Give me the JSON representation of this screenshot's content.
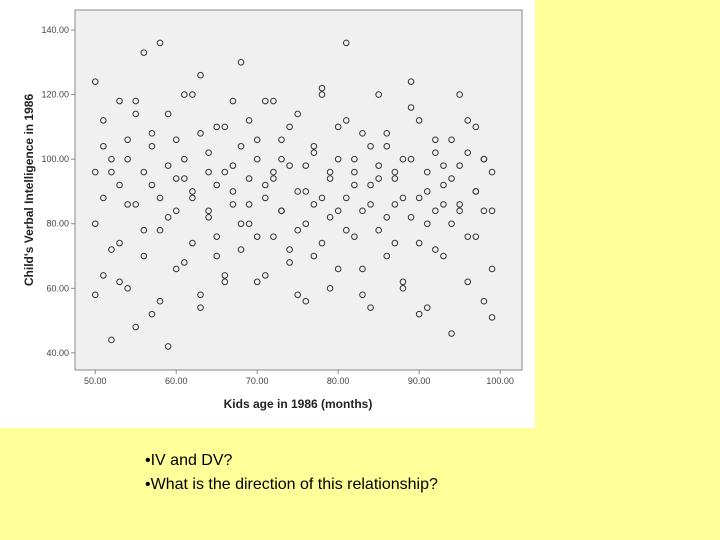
{
  "chart_data": {
    "type": "scatter",
    "xlabel": "Kids age in 1986 (months)",
    "ylabel": "Child's Verbal Intelligence in 1986",
    "xlim": [
      47.5,
      102.7
    ],
    "ylim": [
      34.7,
      146.2
    ],
    "xticks": [
      {
        "value": 50,
        "label": "50.00"
      },
      {
        "value": 60,
        "label": "60.00"
      },
      {
        "value": 70,
        "label": "70.00"
      },
      {
        "value": 80,
        "label": "80.00"
      },
      {
        "value": 90,
        "label": "90.00"
      },
      {
        "value": 100,
        "label": "100.00"
      }
    ],
    "yticks": [
      {
        "value": 40,
        "label": "40.00"
      },
      {
        "value": 60,
        "label": "60.00"
      },
      {
        "value": 80,
        "label": "80.00"
      },
      {
        "value": 100,
        "label": "100.00"
      },
      {
        "value": 120,
        "label": "120.00"
      },
      {
        "value": 140,
        "label": "140.00"
      }
    ],
    "color": "#333333",
    "x": [
      50,
      50,
      51,
      51,
      52,
      52,
      53,
      53,
      54,
      54,
      55,
      55,
      56,
      56,
      57,
      57,
      58,
      58,
      59,
      59,
      60,
      60,
      61,
      61,
      62,
      62,
      63,
      63,
      64,
      64,
      65,
      65,
      66,
      66,
      67,
      67,
      68,
      68,
      69,
      69,
      70,
      70,
      71,
      71,
      72,
      72,
      73,
      73,
      74,
      74,
      75,
      75,
      76,
      76,
      77,
      77,
      78,
      78,
      79,
      79,
      80,
      80,
      81,
      81,
      82,
      82,
      83,
      83,
      84,
      84,
      85,
      85,
      86,
      86,
      87,
      87,
      88,
      88,
      89,
      89,
      90,
      90,
      91,
      91,
      92,
      92,
      93,
      93,
      94,
      94,
      95,
      95,
      96,
      96,
      97,
      97,
      98,
      98,
      99,
      99,
      50,
      50,
      51,
      51,
      52,
      52,
      53,
      53,
      54,
      54,
      55,
      55,
      56,
      56,
      57,
      57,
      58,
      58,
      59,
      59,
      60,
      60,
      61,
      61,
      62,
      62,
      63,
      63,
      64,
      64,
      65,
      65,
      66,
      66,
      67,
      67,
      68,
      68,
      69,
      69,
      70,
      70,
      71,
      71,
      72,
      72,
      73,
      73,
      74,
      74,
      75,
      75,
      76,
      76,
      77,
      77,
      78,
      78,
      79,
      79,
      80,
      80,
      81,
      81,
      82,
      82,
      83,
      83,
      84,
      84,
      85,
      85,
      86,
      86,
      87,
      87,
      88,
      88,
      89,
      89,
      90,
      90,
      91,
      91,
      92,
      92,
      93,
      93,
      94,
      94,
      95,
      95,
      96,
      96,
      97,
      97,
      98,
      98,
      99,
      99
    ],
    "values": [
      124,
      58,
      104,
      88,
      96,
      72,
      118,
      62,
      86,
      100,
      114,
      48,
      133,
      78,
      92,
      108,
      136,
      56,
      82,
      98,
      106,
      66,
      94,
      120,
      74,
      88,
      126,
      54,
      102,
      84,
      110,
      70,
      96,
      62,
      118,
      90,
      80,
      104,
      86,
      112,
      100,
      76,
      92,
      64,
      118,
      94,
      84,
      106,
      72,
      98,
      114,
      58,
      90,
      80,
      102,
      70,
      122,
      88,
      96,
      60,
      110,
      84,
      136,
      78,
      100,
      92,
      66,
      108,
      86,
      54,
      120,
      94,
      82,
      104,
      74,
      96,
      88,
      62,
      124,
      100,
      112,
      52,
      90,
      80,
      106,
      72,
      98,
      86,
      46,
      94,
      120,
      84,
      102,
      76,
      90,
      110,
      56,
      100,
      84,
      51,
      80,
      96,
      64,
      112,
      44,
      100,
      74,
      92,
      106,
      60,
      86,
      118,
      70,
      96,
      52,
      104,
      88,
      78,
      114,
      42,
      94,
      84,
      68,
      100,
      90,
      120,
      58,
      108,
      82,
      96,
      76,
      92,
      110,
      64,
      86,
      98,
      72,
      130,
      94,
      80,
      106,
      62,
      88,
      118,
      76,
      96,
      84,
      100,
      68,
      110,
      90,
      78,
      98,
      56,
      104,
      86,
      120,
      74,
      94,
      82,
      100,
      66,
      88,
      112,
      76,
      96,
      84,
      58,
      104,
      92,
      78,
      98,
      70,
      108,
      86,
      94,
      60,
      100,
      82,
      116,
      88,
      74,
      96,
      54,
      102,
      84,
      92,
      70,
      106,
      80,
      98,
      86,
      62,
      112,
      90,
      76,
      100,
      84,
      96,
      66
    ]
  },
  "bullets": [
    "•IV and DV?",
    "•What is the direction of this relationship?"
  ]
}
